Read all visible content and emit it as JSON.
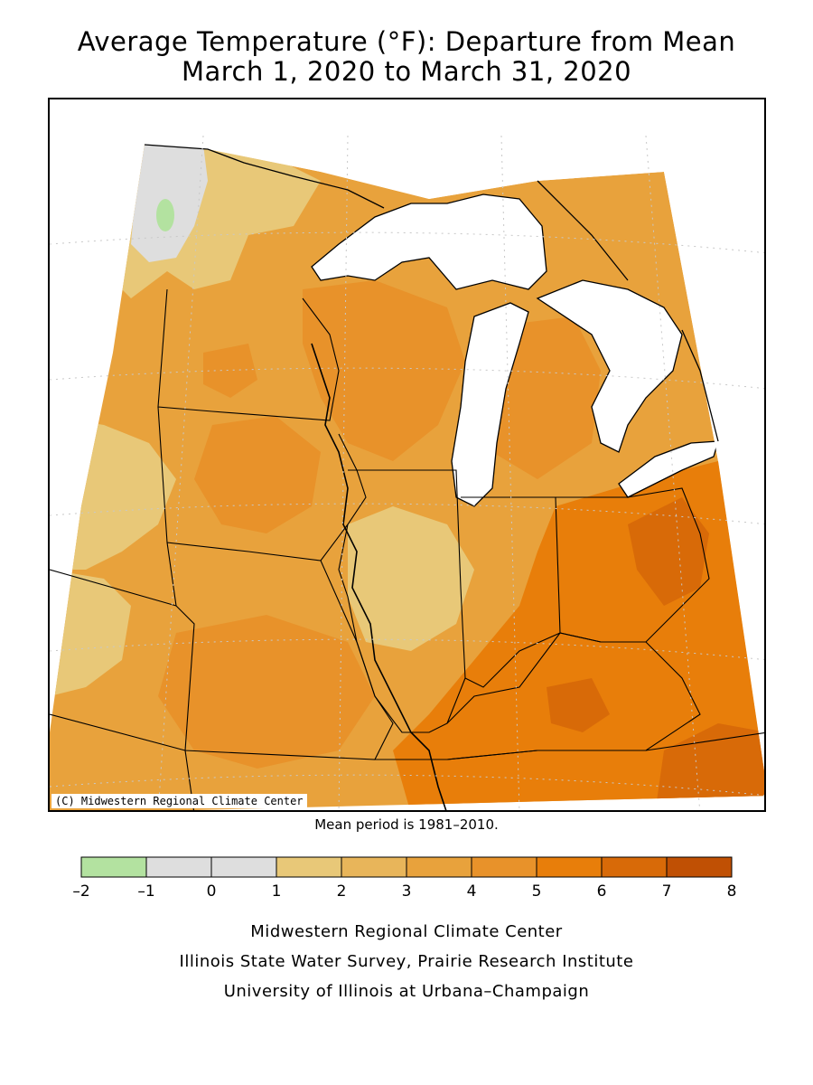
{
  "title": {
    "line1": "Average Temperature (°F): Departure from Mean",
    "line2": "March 1, 2020 to March 31, 2020"
  },
  "map": {
    "copyright": "(C) Midwestern Regional Climate Center",
    "mean_note": "Mean period is 1981–2010."
  },
  "legend": {
    "ticks": [
      "–2",
      "–1",
      "0",
      "1",
      "2",
      "3",
      "4",
      "5",
      "6",
      "7",
      "8"
    ],
    "colors": [
      "#b3e2a0",
      "#dedede",
      "#dedede",
      "#e8c878",
      "#e8b55a",
      "#e8a23c",
      "#e8922a",
      "#e87e0a",
      "#d86a08",
      "#c05004"
    ]
  },
  "credits": {
    "line1": "Midwestern Regional Climate Center",
    "line2": "Illinois State Water Survey, Prairie Research Institute",
    "line3": "University of Illinois at Urbana–Champaign"
  }
}
